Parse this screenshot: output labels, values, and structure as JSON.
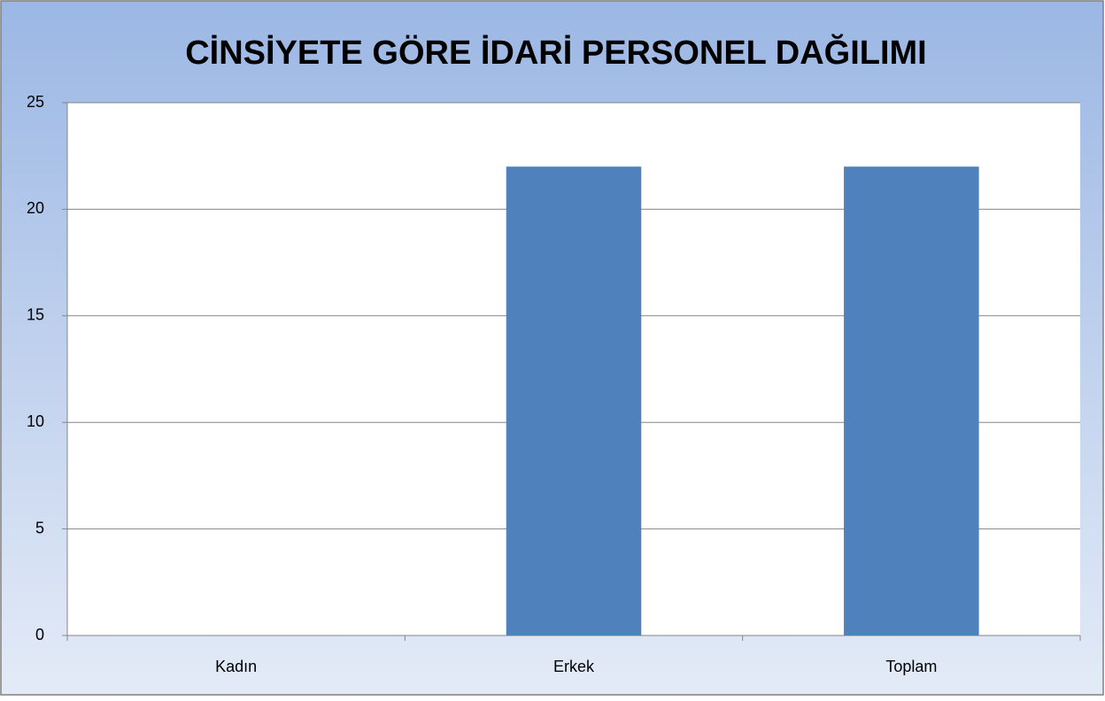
{
  "chart_data": {
    "type": "bar",
    "title": "CİNSİYETE GÖRE İDARİ PERSONEL DAĞILIMI",
    "categories": [
      "Kadın",
      "Erkek",
      "Toplam"
    ],
    "values": [
      0,
      22,
      22
    ],
    "color": "#4f81bd",
    "ylim": [
      0,
      25
    ],
    "yticks": [
      0,
      5,
      10,
      15,
      20,
      25
    ],
    "grid": true
  }
}
